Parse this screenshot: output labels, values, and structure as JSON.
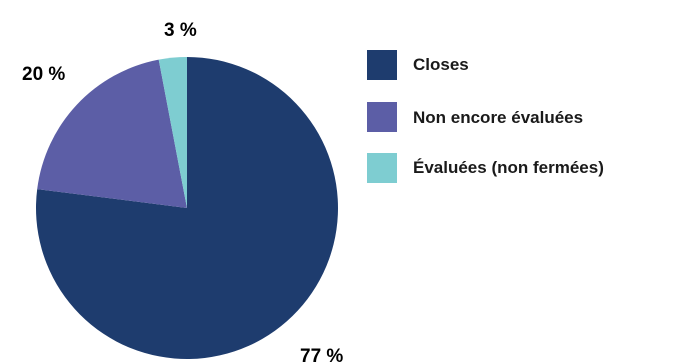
{
  "chart_data": {
    "type": "pie",
    "title": "",
    "legend_position": "right",
    "start_angle_deg": 0,
    "direction": "clockwise",
    "slices": [
      {
        "label": "Closes",
        "value": 77,
        "value_label": "77 %",
        "color": "#1e3c6e"
      },
      {
        "label": "Non encore évaluées",
        "value": 20,
        "value_label": "20 %",
        "color": "#5c5ea6"
      },
      {
        "label": "Évaluées (non fermées)",
        "value": 3,
        "value_label": "3 %",
        "color": "#7ecdd1"
      }
    ]
  }
}
